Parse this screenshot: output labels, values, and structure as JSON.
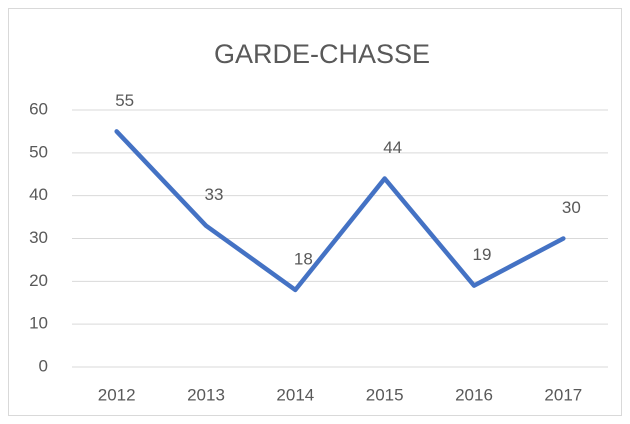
{
  "chart_data": {
    "type": "line",
    "title": "GARDE-CHASSE",
    "categories": [
      "2012",
      "2013",
      "2014",
      "2015",
      "2016",
      "2017"
    ],
    "values": [
      55,
      33,
      18,
      44,
      19,
      30
    ],
    "color": "#4472c4",
    "ylim": [
      0,
      60
    ],
    "yticks": [
      0,
      10,
      20,
      30,
      40,
      50,
      60
    ],
    "grid": true,
    "data_labels": true
  }
}
